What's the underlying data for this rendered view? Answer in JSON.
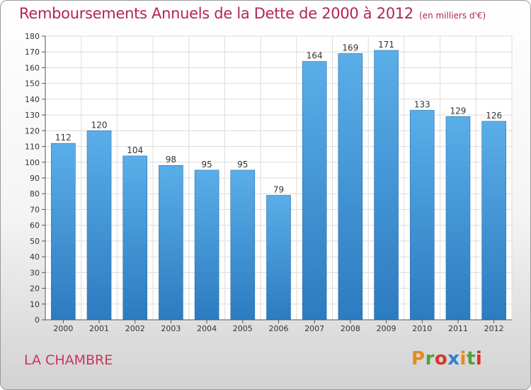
{
  "header": {
    "title": "Remboursements Annuels de la Dette de 2000 à 2012",
    "unit": "(en milliers d'€)"
  },
  "footer": {
    "commune": "LA CHAMBRE",
    "brand": "Proxiti"
  },
  "colors": {
    "title": "#b4235a",
    "bar_top": "#5aaee8",
    "bar_bottom": "#2d7bc0",
    "grid": "#dcdcdc",
    "axis": "#555555"
  },
  "chart_data": {
    "type": "bar",
    "categories": [
      "2000",
      "2001",
      "2002",
      "2003",
      "2004",
      "2005",
      "2006",
      "2007",
      "2008",
      "2009",
      "2010",
      "2011",
      "2012"
    ],
    "values": [
      112,
      120,
      104,
      98,
      95,
      95,
      79,
      164,
      169,
      171,
      133,
      129,
      126
    ],
    "title": "Remboursements Annuels de la Dette de 2000 à 2012",
    "ylim": [
      0,
      180
    ],
    "ytick_step": 10,
    "grid": true,
    "data_labels": true
  }
}
